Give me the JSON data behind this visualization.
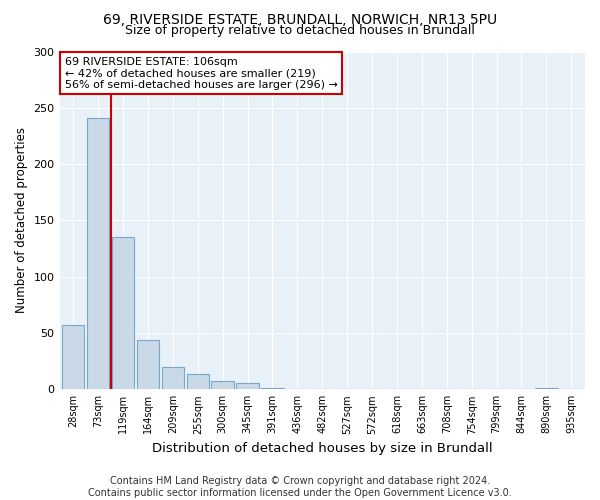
{
  "title1": "69, RIVERSIDE ESTATE, BRUNDALL, NORWICH, NR13 5PU",
  "title2": "Size of property relative to detached houses in Brundall",
  "xlabel": "Distribution of detached houses by size in Brundall",
  "ylabel": "Number of detached properties",
  "bin_labels": [
    "28sqm",
    "73sqm",
    "119sqm",
    "164sqm",
    "209sqm",
    "255sqm",
    "300sqm",
    "345sqm",
    "391sqm",
    "436sqm",
    "482sqm",
    "527sqm",
    "572sqm",
    "618sqm",
    "663sqm",
    "708sqm",
    "754sqm",
    "799sqm",
    "844sqm",
    "890sqm",
    "935sqm"
  ],
  "bar_values": [
    57,
    241,
    135,
    44,
    20,
    14,
    7,
    6,
    1,
    0,
    0,
    0,
    0,
    0,
    0,
    0,
    0,
    0,
    0,
    1,
    0
  ],
  "bar_color": "#c9d9e8",
  "bar_edge_color": "#7aa8c8",
  "annotation_box_text": "69 RIVERSIDE ESTATE: 106sqm\n← 42% of detached houses are smaller (219)\n56% of semi-detached houses are larger (296) →",
  "annotation_box_color": "white",
  "annotation_box_edge_color": "#cc0000",
  "vline_color": "#cc0000",
  "vline_x_index": 2,
  "ylim": [
    0,
    300
  ],
  "yticks": [
    0,
    50,
    100,
    150,
    200,
    250,
    300
  ],
  "background_color": "#e8f0f8",
  "footer_text": "Contains HM Land Registry data © Crown copyright and database right 2024.\nContains public sector information licensed under the Open Government Licence v3.0.",
  "title1_fontsize": 10,
  "title2_fontsize": 9,
  "xlabel_fontsize": 9.5,
  "ylabel_fontsize": 8.5,
  "footer_fontsize": 7
}
